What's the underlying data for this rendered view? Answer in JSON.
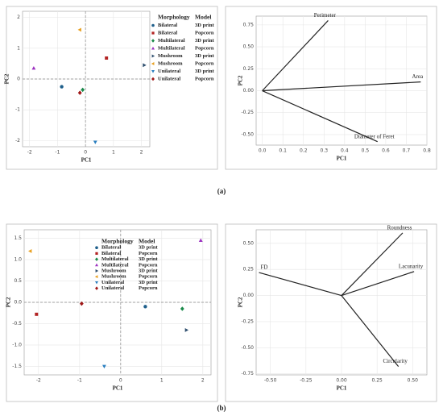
{
  "captions": [
    "(a)",
    "(b)"
  ],
  "chart_data": [
    {
      "type": "scatter",
      "xlabel": "PC1",
      "ylabel": "PC2",
      "legend_titles": [
        "Morphology",
        "Model"
      ],
      "xlim": [
        -2.25,
        2.3
      ],
      "ylim": [
        -2.2,
        2.2
      ],
      "xticks": [
        -2,
        -1,
        0,
        1,
        2
      ],
      "yticks": [
        -2,
        -1,
        0,
        1,
        2
      ],
      "grid": true,
      "series": [
        {
          "name": "Bilateral",
          "model": "3D print",
          "color": "#1f5f8b",
          "marker": "circle",
          "x": -0.85,
          "y": -0.25
        },
        {
          "name": "Bilateral",
          "model": "Popcorn",
          "color": "#b22222",
          "marker": "square",
          "x": 0.75,
          "y": 0.68
        },
        {
          "name": "Multilateral",
          "model": "3D print",
          "color": "#1a8a4a",
          "marker": "diamond",
          "x": -0.1,
          "y": -0.35
        },
        {
          "name": "Multilateral",
          "model": "Popcorn",
          "color": "#9b30c0",
          "marker": "triangle-up",
          "x": -1.85,
          "y": 0.35
        },
        {
          "name": "Mushroom",
          "model": "3D print",
          "color": "#2f4f6f",
          "marker": "triangle-right",
          "x": 2.1,
          "y": 0.45
        },
        {
          "name": "Mushroom",
          "model": "Popcorn",
          "color": "#e8a020",
          "marker": "triangle-left",
          "x": -0.2,
          "y": 1.6
        },
        {
          "name": "Unilateral",
          "model": "3D print",
          "color": "#2a7fc0",
          "marker": "triangle-down",
          "x": 0.35,
          "y": -2.05
        },
        {
          "name": "Unilateral",
          "model": "Popcorn",
          "color": "#a01818",
          "marker": "diamond",
          "x": -0.2,
          "y": -0.45
        }
      ]
    },
    {
      "type": "biplot",
      "xlabel": "PC1",
      "ylabel": "PC2",
      "xlim": [
        -0.03,
        0.8
      ],
      "ylim": [
        -0.62,
        0.85
      ],
      "xticks": [
        {
          "value": 0,
          "label": "0.0"
        },
        0.1,
        0.2,
        0.3,
        0.4,
        0.5,
        0.6,
        0.7,
        0.8
      ],
      "yticks": [
        {
          "value": -0.5,
          "label": "-0.50"
        },
        -0.25,
        {
          "value": 0,
          "label": "0.00"
        },
        0.25,
        {
          "value": 0.5,
          "label": "0.50"
        },
        0.75
      ],
      "grid": true,
      "vectors": [
        {
          "name": "Perimeter",
          "x": 0.32,
          "y": 0.8
        },
        {
          "name": "Area",
          "x": 0.77,
          "y": 0.1
        },
        {
          "name": "Diameter of Feret",
          "x": 0.56,
          "y": -0.58
        }
      ]
    },
    {
      "type": "scatter",
      "xlabel": "PC1",
      "ylabel": "PC2",
      "legend_titles": [
        "Morphology",
        "Model"
      ],
      "xlim": [
        -2.35,
        2.2
      ],
      "ylim": [
        -1.7,
        1.7
      ],
      "xticks": [
        -2,
        -1,
        0,
        1,
        2
      ],
      "yticks": [
        1.5,
        {
          "value": 1,
          "label": "1.0"
        },
        0.5,
        {
          "value": 0,
          "label": "0.0"
        },
        -0.5,
        {
          "value": -1,
          "label": "-1.0"
        },
        -1.5
      ],
      "grid": true,
      "series": [
        {
          "name": "Bilateral",
          "model": "3D print",
          "color": "#1f5f8b",
          "marker": "circle",
          "x": 0.6,
          "y": -0.1
        },
        {
          "name": "Bilateral",
          "model": "Popcorn",
          "color": "#b22222",
          "marker": "square",
          "x": -2.05,
          "y": -0.28
        },
        {
          "name": "Multilateral",
          "model": "3D print",
          "color": "#1a8a4a",
          "marker": "diamond",
          "x": 1.5,
          "y": -0.15
        },
        {
          "name": "Multilateral",
          "model": "Popcorn",
          "color": "#9b30c0",
          "marker": "triangle-up",
          "x": 1.95,
          "y": 1.45
        },
        {
          "name": "Mushroom",
          "model": "3D print",
          "color": "#2f4f6f",
          "marker": "triangle-right",
          "x": 1.6,
          "y": -0.65
        },
        {
          "name": "Mushroom",
          "model": "Popcorn",
          "color": "#e8a020",
          "marker": "triangle-left",
          "x": -2.2,
          "y": 1.2
        },
        {
          "name": "Unilateral",
          "model": "3D print",
          "color": "#2a7fc0",
          "marker": "triangle-down",
          "x": -0.4,
          "y": -1.5
        },
        {
          "name": "Unilateral",
          "model": "Popcorn",
          "color": "#a01818",
          "marker": "diamond",
          "x": -0.95,
          "y": -0.03
        }
      ]
    },
    {
      "type": "biplot",
      "xlabel": "PC1",
      "ylabel": "PC2",
      "xlim": [
        -0.6,
        0.6
      ],
      "ylim": [
        -0.76,
        0.63
      ],
      "xticks": [
        {
          "value": -0.5,
          "label": "-0.50"
        },
        -0.25,
        {
          "value": 0,
          "label": "0.00"
        },
        0.25,
        {
          "value": 0.5,
          "label": "0.50"
        }
      ],
      "yticks": [
        {
          "value": 0.5,
          "label": "0.50"
        },
        0.25,
        {
          "value": 0,
          "label": "0.00"
        },
        -0.25,
        {
          "value": -0.5,
          "label": "-0.50"
        },
        -0.75
      ],
      "grid": true,
      "vectors": [
        {
          "name": "FD",
          "x": -0.58,
          "y": 0.22
        },
        {
          "name": "Roundness",
          "x": 0.43,
          "y": 0.6
        },
        {
          "name": "Lacunarity",
          "x": 0.51,
          "y": 0.23
        },
        {
          "name": "Circularity",
          "x": 0.4,
          "y": -0.68
        }
      ]
    }
  ]
}
